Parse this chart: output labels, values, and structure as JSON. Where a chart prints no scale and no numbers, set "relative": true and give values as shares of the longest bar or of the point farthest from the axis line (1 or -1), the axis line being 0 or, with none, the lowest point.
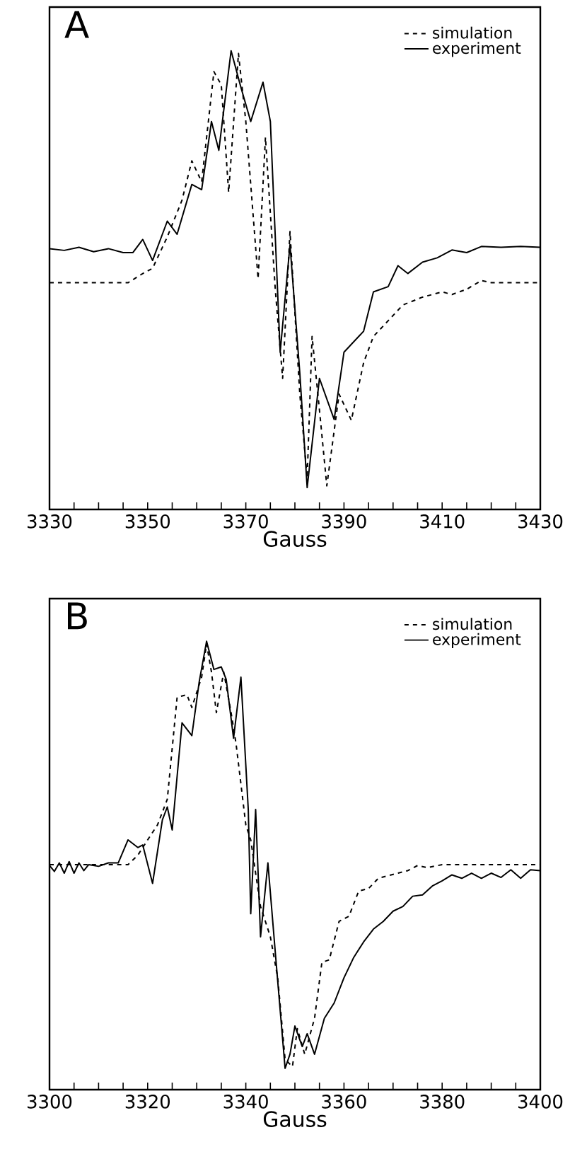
{
  "chart_data": [
    {
      "type": "line",
      "title": "A",
      "xlabel": "Gauss",
      "relative": true,
      "legend": "top right",
      "grid": false,
      "xlim": [
        3330,
        3430
      ],
      "xticks": [
        3330,
        {
          "value": 3335,
          "label": null
        },
        {
          "value": 3340,
          "label": null
        },
        {
          "value": 3345,
          "label": null
        },
        3350,
        {
          "value": 3355,
          "label": null
        },
        {
          "value": 3360,
          "label": null
        },
        {
          "value": 3365,
          "label": null
        },
        3370,
        {
          "value": 3375,
          "label": null
        },
        {
          "value": 3380,
          "label": null
        },
        {
          "value": 3385,
          "label": null
        },
        3390,
        {
          "value": 3395,
          "label": null
        },
        {
          "value": 3400,
          "label": null
        },
        {
          "value": 3405,
          "label": null
        },
        3410,
        {
          "value": 3415,
          "label": null
        },
        {
          "value": 3420,
          "label": null
        },
        {
          "value": 3425,
          "label": null
        },
        3430
      ],
      "series": [
        {
          "name": "simulation",
          "color": "#000000",
          "line_style": "dashed",
          "x": [
            3330,
            3346,
            3349,
            3351,
            3354,
            3357,
            3359,
            3361,
            3363.5,
            3365,
            3366.5,
            3368.5,
            3370,
            3372.5,
            3374,
            3376,
            3377.5,
            3379,
            3381,
            3382.5,
            3383.5,
            3385,
            3386.5,
            3389,
            3391.5,
            3394,
            3396,
            3399,
            3402,
            3406,
            3410,
            3412,
            3415,
            3418,
            3420,
            3430
          ],
          "values": [
            0.469,
            0.469,
            0.49,
            0.502,
            0.574,
            0.658,
            0.748,
            0.7,
            0.952,
            0.922,
            0.676,
            0.994,
            0.838,
            0.478,
            0.802,
            0.454,
            0.25,
            0.586,
            0.214,
            0.022,
            0.346,
            0.178,
            0.004,
            0.214,
            0.154,
            0.286,
            0.346,
            0.382,
            0.418,
            0.436,
            0.448,
            0.442,
            0.454,
            0.474,
            0.469,
            0.469
          ]
        },
        {
          "name": "experiment",
          "color": "#000000",
          "line_style": "solid",
          "x": [
            3330,
            3333,
            3336,
            3339,
            3342,
            3345,
            3347,
            3349,
            3351,
            3354,
            3356,
            3359,
            3361,
            3363,
            3364.5,
            3367,
            3369,
            3371,
            3373.5,
            3375,
            3377,
            3379,
            3381,
            3382.5,
            3385,
            3388,
            3390,
            3394,
            3396,
            3399,
            3401,
            3403,
            3406,
            3409,
            3412,
            3415,
            3418,
            3422,
            3426,
            3430
          ],
          "values": [
            0.547,
            0.543,
            0.55,
            0.54,
            0.547,
            0.538,
            0.538,
            0.568,
            0.52,
            0.61,
            0.58,
            0.694,
            0.682,
            0.838,
            0.772,
            1.0,
            0.916,
            0.838,
            0.928,
            0.838,
            0.31,
            0.556,
            0.262,
            0,
            0.25,
            0.156,
            0.31,
            0.358,
            0.448,
            0.46,
            0.508,
            0.49,
            0.516,
            0.526,
            0.544,
            0.538,
            0.552,
            0.55,
            0.552,
            0.55
          ]
        }
      ]
    },
    {
      "type": "line",
      "title": "B",
      "xlabel": "Gauss",
      "relative": true,
      "legend": "top right",
      "grid": false,
      "xlim": [
        3300,
        3400
      ],
      "xticks": [
        3300,
        {
          "value": 3305,
          "label": null
        },
        {
          "value": 3310,
          "label": null
        },
        {
          "value": 3315,
          "label": null
        },
        3320,
        {
          "value": 3325,
          "label": null
        },
        {
          "value": 3330,
          "label": null
        },
        {
          "value": 3335,
          "label": null
        },
        3340,
        {
          "value": 3345,
          "label": null
        },
        {
          "value": 3350,
          "label": null
        },
        {
          "value": 3355,
          "label": null
        },
        3360,
        {
          "value": 3365,
          "label": null
        },
        {
          "value": 3370,
          "label": null
        },
        {
          "value": 3375,
          "label": null
        },
        3380,
        {
          "value": 3385,
          "label": null
        },
        {
          "value": 3390,
          "label": null
        },
        {
          "value": 3395,
          "label": null
        },
        3400
      ],
      "series": [
        {
          "name": "simulation",
          "color": "#000000",
          "line_style": "dashed",
          "x": [
            3300,
            3316,
            3318,
            3320,
            3322,
            3324,
            3326,
            3328,
            3329,
            3331,
            3332,
            3333,
            3334,
            3335.5,
            3337,
            3338,
            3339,
            3340,
            3341,
            3343,
            3345,
            3346.5,
            3348,
            3349.5,
            3350.5,
            3352,
            3354,
            3355.5,
            3357,
            3359,
            3361,
            3363,
            3365,
            3367,
            3369,
            3371,
            3373,
            3375,
            3377,
            3380,
            3400
          ],
          "values": [
            0.477,
            0.477,
            0.499,
            0.535,
            0.57,
            0.63,
            0.869,
            0.875,
            0.845,
            0.916,
            0.994,
            0.928,
            0.833,
            0.928,
            0.833,
            0.761,
            0.666,
            0.57,
            0.535,
            0.379,
            0.308,
            0.212,
            0.021,
            0.004,
            0.093,
            0.033,
            0.117,
            0.248,
            0.254,
            0.344,
            0.356,
            0.415,
            0.421,
            0.445,
            0.451,
            0.457,
            0.463,
            0.475,
            0.47,
            0.477,
            0.477
          ]
        },
        {
          "name": "experiment",
          "color": "#000000",
          "line_style": "solid",
          "x": [
            3300,
            3301,
            3302,
            3303,
            3304,
            3305,
            3306,
            3307,
            3308,
            3310,
            3312,
            3314,
            3316,
            3318,
            3319,
            3321,
            3323,
            3324,
            3325,
            3327,
            3329,
            3330.5,
            3332,
            3333.5,
            3335,
            3336,
            3337.5,
            3339,
            3340.5,
            3341,
            3342,
            3343,
            3344.5,
            3346,
            3348,
            3349,
            3350,
            3351.5,
            3352.5,
            3354,
            3356,
            3358,
            3360,
            3362,
            3364,
            3366,
            3368,
            3370,
            3372,
            3374,
            3376,
            3378,
            3380,
            3382,
            3384,
            3386,
            3388,
            3390,
            3392,
            3394,
            3396,
            3398,
            3400
          ],
          "values": [
            0.475,
            0.461,
            0.481,
            0.457,
            0.484,
            0.457,
            0.481,
            0.463,
            0.477,
            0.473,
            0.481,
            0.481,
            0.535,
            0.517,
            0.523,
            0.433,
            0.582,
            0.612,
            0.558,
            0.809,
            0.779,
            0.905,
            1.0,
            0.934,
            0.94,
            0.911,
            0.773,
            0.916,
            0.606,
            0.362,
            0.606,
            0.308,
            0.481,
            0.272,
            0,
            0.033,
            0.099,
            0.051,
            0.081,
            0.033,
            0.117,
            0.153,
            0.212,
            0.26,
            0.296,
            0.326,
            0.344,
            0.368,
            0.379,
            0.403,
            0.406,
            0.427,
            0.439,
            0.453,
            0.445,
            0.457,
            0.445,
            0.457,
            0.447,
            0.465,
            0.445,
            0.465,
            0.463
          ]
        }
      ]
    }
  ]
}
